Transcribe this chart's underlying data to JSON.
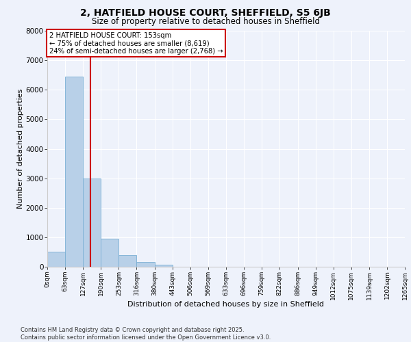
{
  "title_line1": "2, HATFIELD HOUSE COURT, SHEFFIELD, S5 6JB",
  "title_line2": "Size of property relative to detached houses in Sheffield",
  "xlabel": "Distribution of detached houses by size in Sheffield",
  "ylabel": "Number of detached properties",
  "bar_color": "#b8d0e8",
  "bar_edge_color": "#7aafd4",
  "background_color": "#eef2fb",
  "grid_color": "#ffffff",
  "bin_labels": [
    "0sqm",
    "63sqm",
    "127sqm",
    "190sqm",
    "253sqm",
    "316sqm",
    "380sqm",
    "443sqm",
    "506sqm",
    "569sqm",
    "633sqm",
    "696sqm",
    "759sqm",
    "822sqm",
    "886sqm",
    "949sqm",
    "1012sqm",
    "1075sqm",
    "1139sqm",
    "1202sqm",
    "1265sqm"
  ],
  "bar_values": [
    500,
    6450,
    3000,
    950,
    400,
    160,
    80,
    0,
    0,
    0,
    0,
    0,
    0,
    0,
    0,
    0,
    0,
    0,
    0,
    0
  ],
  "bin_edges": [
    0,
    63,
    127,
    190,
    253,
    316,
    380,
    443,
    506,
    569,
    633,
    696,
    759,
    822,
    886,
    949,
    1012,
    1075,
    1139,
    1202,
    1265
  ],
  "ylim": [
    0,
    8000
  ],
  "yticks": [
    0,
    1000,
    2000,
    3000,
    4000,
    5000,
    6000,
    7000,
    8000
  ],
  "property_value": 153,
  "annotation_title": "2 HATFIELD HOUSE COURT: 153sqm",
  "annotation_line2": "← 75% of detached houses are smaller (8,619)",
  "annotation_line3": "24% of semi-detached houses are larger (2,768) →",
  "annotation_box_color": "#ffffff",
  "annotation_box_edge_color": "#cc0000",
  "vline_color": "#cc0000",
  "footer_line1": "Contains HM Land Registry data © Crown copyright and database right 2025.",
  "footer_line2": "Contains public sector information licensed under the Open Government Licence v3.0."
}
